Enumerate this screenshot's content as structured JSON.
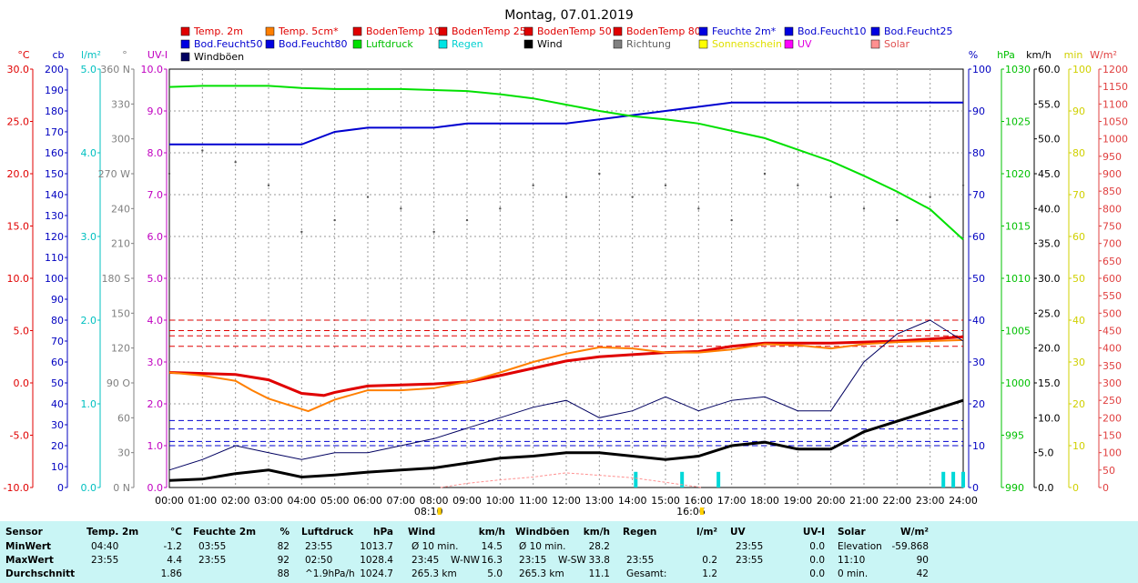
{
  "title": "Montag, 07.01.2019",
  "legend": [
    {
      "name": "Temp. 2m",
      "color": "#e00000"
    },
    {
      "name": "Temp. 5cm*",
      "color": "#ff7f00"
    },
    {
      "name": "BodenTemp 10",
      "color": "#e00000"
    },
    {
      "name": "BodenTemp 25",
      "color": "#e00000"
    },
    {
      "name": "BodenTemp 50",
      "color": "#e00000"
    },
    {
      "name": "BodenTemp 80",
      "color": "#e00000"
    },
    {
      "name": "Feuchte 2m*",
      "color": "#0000e0"
    },
    {
      "name": "Bod.Feucht10",
      "color": "#0000e0"
    },
    {
      "name": "Bod.Feucht25",
      "color": "#0000e0"
    },
    {
      "name": "Bod.Feucht50",
      "color": "#0000e0"
    },
    {
      "name": "Bod.Feucht80",
      "color": "#0000e0"
    },
    {
      "name": "Luftdruck",
      "color": "#00e000"
    },
    {
      "name": "Regen",
      "color": "#00e5e5"
    },
    {
      "name": "Wind",
      "color": "#000000"
    },
    {
      "name": "Richtung",
      "color": "#808080"
    },
    {
      "name": "Sonnenschein",
      "color": "#ffff00"
    },
    {
      "name": "UV",
      "color": "#ff00ff"
    },
    {
      "name": "Solar",
      "color": "#ff9090"
    },
    {
      "name": "Windböen",
      "color": "#000060"
    }
  ],
  "axes_left": [
    {
      "unit": "°C",
      "color": "#e00000",
      "ticks": [
        "30.0",
        "25.0",
        "20.0",
        "15.0",
        "10.0",
        "5.0",
        "0.0",
        "-5.0",
        "-10.0"
      ]
    },
    {
      "unit": "cb",
      "color": "#0000c0",
      "ticks": [
        "200",
        "190",
        "180",
        "170",
        "160",
        "150",
        "140",
        "130",
        "120",
        "110",
        "100",
        "90",
        "80",
        "70",
        "60",
        "50",
        "40",
        "30",
        "20",
        "10",
        "0"
      ]
    },
    {
      "unit": "l/m²",
      "color": "#00c0c0",
      "ticks": [
        "5.0",
        "4.0",
        "3.0",
        "2.0",
        "1.0",
        "0.0"
      ]
    },
    {
      "unit": "°",
      "color": "#808080",
      "ticks": [
        "360 N",
        "330",
        "300",
        "270 W",
        "240",
        "210",
        "180 S",
        "150",
        "120",
        "90 O",
        "60",
        "30",
        "0 N"
      ]
    },
    {
      "unit": "UV-I",
      "color": "#c000c0",
      "ticks": [
        "10.0",
        "9.0",
        "8.0",
        "7.0",
        "6.0",
        "5.0",
        "4.0",
        "3.0",
        "2.0",
        "1.0",
        "0.0"
      ]
    }
  ],
  "axes_right": [
    {
      "unit": "%",
      "color": "#0000c0",
      "ticks": [
        "100",
        "90",
        "80",
        "70",
        "60",
        "50",
        "40",
        "30",
        "20",
        "10",
        "0"
      ]
    },
    {
      "unit": "hPa",
      "color": "#00c000",
      "ticks": [
        "1030",
        "1025",
        "1020",
        "1015",
        "1010",
        "1005",
        "1000",
        "995",
        "990"
      ]
    },
    {
      "unit": "km/h",
      "color": "#000000",
      "ticks": [
        "60.0",
        "55.0",
        "50.0",
        "45.0",
        "40.0",
        "35.0",
        "30.0",
        "25.0",
        "20.0",
        "15.0",
        "10.0",
        "5.0",
        "0.0"
      ]
    },
    {
      "unit": "min",
      "color": "#d0d000",
      "ticks": [
        "100",
        "90",
        "80",
        "70",
        "60",
        "50",
        "40",
        "30",
        "20",
        "10",
        "0"
      ]
    },
    {
      "unit": "W/m²",
      "color": "#e04040",
      "ticks": [
        "1200",
        "1150",
        "1100",
        "1050",
        "1000",
        "950",
        "900",
        "850",
        "800",
        "750",
        "700",
        "650",
        "600",
        "550",
        "500",
        "450",
        "400",
        "350",
        "300",
        "250",
        "200",
        "150",
        "100",
        "50",
        "0"
      ]
    }
  ],
  "x_ticks": [
    "00:00",
    "01:00",
    "02:00",
    "03:00",
    "04:00",
    "05:00",
    "06:00",
    "07:00",
    "08:00",
    "09:00",
    "10:00",
    "11:00",
    "12:00",
    "13:00",
    "14:00",
    "15:00",
    "16:00",
    "17:00",
    "18:00",
    "19:00",
    "20:00",
    "21:00",
    "22:00",
    "23:00",
    "24:00"
  ],
  "sun_marks": [
    "08:10",
    "16:06"
  ],
  "chart_data": {
    "type": "line",
    "title": "Montag, 07.01.2019",
    "x_unit": "hour",
    "ylim_temp": [
      -10,
      30
    ],
    "ylim_humidity": [
      0,
      100
    ],
    "ylim_pressure": [
      990,
      1030
    ],
    "ylim_wind": [
      0,
      60
    ],
    "series": [
      {
        "name": "Temp. 2m",
        "axis": "°C",
        "x": [
          0,
          1,
          2,
          3,
          4,
          4.67,
          5,
          6,
          7,
          8,
          9,
          10,
          11,
          12,
          13,
          14,
          15,
          16,
          17,
          18,
          19,
          20,
          21,
          22,
          23,
          24
        ],
        "values": [
          1.0,
          0.9,
          0.8,
          0.3,
          -1.0,
          -1.2,
          -0.9,
          -0.3,
          -0.2,
          -0.1,
          0.1,
          0.7,
          1.4,
          2.1,
          2.5,
          2.7,
          2.9,
          3.0,
          3.5,
          3.8,
          3.8,
          3.8,
          3.9,
          4.0,
          4.2,
          4.4
        ]
      },
      {
        "name": "Temp. 5cm*",
        "axis": "°C",
        "x": [
          0,
          1,
          2,
          2.5,
          3,
          4,
          4.2,
          5,
          6,
          7,
          8,
          9,
          10,
          11,
          12,
          13,
          14,
          15,
          16,
          17,
          18,
          19,
          20,
          21,
          22,
          23,
          24
        ],
        "values": [
          1.0,
          0.7,
          0.2,
          -0.7,
          -1.5,
          -2.5,
          -2.7,
          -1.6,
          -0.7,
          -0.7,
          -0.5,
          0.1,
          1.0,
          2.0,
          2.8,
          3.4,
          3.3,
          2.9,
          2.9,
          3.2,
          3.7,
          3.6,
          3.3,
          3.7,
          3.9,
          4.0,
          4.1
        ]
      },
      {
        "name": "Feuchte 2m*",
        "axis": "%",
        "x": [
          0,
          2,
          3,
          4,
          5,
          6,
          7,
          8,
          9,
          10,
          11,
          12,
          13,
          14,
          15,
          16,
          17,
          18,
          19,
          20,
          21,
          22,
          23,
          24
        ],
        "values": [
          82,
          82,
          82,
          82,
          85,
          86,
          86,
          86,
          87,
          87,
          87,
          87,
          88,
          89,
          90,
          91,
          92,
          92,
          92,
          92,
          92,
          92,
          92,
          92
        ]
      },
      {
        "name": "Luftdruck",
        "axis": "hPa",
        "x": [
          0,
          1,
          2,
          3,
          4,
          5,
          6,
          7,
          8,
          9,
          10,
          11,
          12,
          13,
          14,
          15,
          16,
          17,
          18,
          19,
          20,
          21,
          22,
          23,
          24
        ],
        "values": [
          1028.3,
          1028.4,
          1028.4,
          1028.4,
          1028.2,
          1028.1,
          1028.1,
          1028.1,
          1028.0,
          1027.9,
          1027.6,
          1027.2,
          1026.6,
          1026.0,
          1025.5,
          1025.2,
          1024.8,
          1024.1,
          1023.4,
          1022.3,
          1021.2,
          1019.8,
          1018.3,
          1016.6,
          1013.7
        ]
      },
      {
        "name": "Wind",
        "axis": "km/h",
        "x": [
          0,
          1,
          2,
          3,
          4,
          5,
          6,
          7,
          8,
          9,
          10,
          11,
          12,
          13,
          14,
          15,
          16,
          17,
          18,
          19,
          20,
          21,
          22,
          23,
          24
        ],
        "values": [
          1.0,
          1.2,
          2.0,
          2.5,
          1.5,
          1.8,
          2.2,
          2.5,
          2.8,
          3.5,
          4.2,
          4.5,
          5.0,
          5.0,
          4.5,
          4.0,
          4.5,
          6.0,
          6.5,
          5.5,
          5.5,
          8.0,
          9.5,
          11.0,
          12.5
        ]
      },
      {
        "name": "Windböen",
        "axis": "km/h",
        "x": [
          0,
          1,
          2,
          3,
          4,
          5,
          6,
          7,
          8,
          9,
          10,
          11,
          12,
          13,
          14,
          15,
          16,
          17,
          18,
          19,
          20,
          21,
          22,
          23,
          24
        ],
        "values": [
          2.5,
          4.0,
          6.0,
          5.0,
          4.0,
          5.0,
          5.0,
          6.0,
          7.0,
          8.5,
          10.0,
          11.5,
          12.5,
          10.0,
          11.0,
          13.0,
          11.0,
          12.5,
          13.0,
          11.0,
          11.0,
          18.0,
          22.0,
          24.0,
          21.0
        ]
      },
      {
        "name": "Richtung",
        "axis": "°",
        "x": [
          0,
          1,
          2,
          3,
          4,
          5,
          6,
          7,
          8,
          9,
          10,
          11,
          12,
          13,
          14,
          15,
          16,
          17,
          18,
          19,
          20,
          21,
          22,
          23,
          24
        ],
        "values": [
          270,
          290,
          280,
          260,
          220,
          230,
          250,
          240,
          220,
          230,
          240,
          260,
          250,
          270,
          250,
          260,
          240,
          230,
          270,
          260,
          250,
          240,
          230,
          250,
          260
        ]
      },
      {
        "name": "Regen",
        "axis": "l/m²",
        "x": [
          14.1,
          15.5,
          16.6,
          23.4,
          23.7,
          24.0
        ],
        "values": [
          0.1,
          0.1,
          0.1,
          0.1,
          0.1,
          0.1
        ]
      },
      {
        "name": "Solar",
        "axis": "W/m²",
        "x": [
          8.2,
          9,
          10,
          11,
          12,
          13,
          14,
          15,
          16.1
        ],
        "values": [
          0,
          12,
          22,
          30,
          42,
          35,
          28,
          15,
          0
        ]
      }
    ],
    "reference_lines": [
      {
        "name": "BodenTemp 10",
        "axis": "°C",
        "value": 3.5
      },
      {
        "name": "BodenTemp 25",
        "axis": "°C",
        "value": 4.5
      },
      {
        "name": "BodenTemp 50",
        "axis": "°C",
        "value": 5.0
      },
      {
        "name": "BodenTemp 80",
        "axis": "°C",
        "value": 6.0
      },
      {
        "name": "Bod.Feucht10",
        "axis": "%",
        "value": 10
      },
      {
        "name": "Bod.Feucht25",
        "axis": "%",
        "value": 11
      },
      {
        "name": "Bod.Feucht50",
        "axis": "%",
        "value": 14
      },
      {
        "name": "Bod.Feucht80",
        "axis": "%",
        "value": 16
      }
    ]
  },
  "table": {
    "headers": [
      "Sensor",
      "Temp. 2m",
      "°C",
      "Feuchte 2m",
      "%",
      "Luftdruck",
      "hPa",
      "Wind",
      "km/h",
      "Windböen",
      "km/h",
      "Regen",
      "l/m²",
      "UV",
      "UV-I",
      "Solar",
      "W/m²"
    ],
    "rows": [
      [
        "MinWert",
        "04:40",
        "-1.2",
        "03:55",
        "82",
        "23:55",
        "1013.7",
        "Ø 10 min.",
        "",
        "14.5",
        "Ø 10 min.",
        "",
        "28.2",
        "",
        "",
        "23:55",
        "0.0",
        "Elevation",
        "-59.868"
      ],
      [
        "MaxWert",
        "23:55",
        "4.4",
        "23:55",
        "92",
        "02:50",
        "1028.4",
        "23:45",
        "W-NW",
        "16.3",
        "23:15",
        "W-SW",
        "33.8",
        "23:55",
        "0.2",
        "23:55",
        "0.0",
        "11:10",
        "90"
      ],
      [
        "Durchschnitt",
        "",
        "1.86",
        "",
        "88",
        "^1.9hPa/h",
        "1024.7",
        "265.3 km",
        "",
        "5.0",
        "265.3 km",
        "",
        "11.1",
        "Gesamt:",
        "1.2",
        "",
        "0.0",
        "0 min.",
        "42"
      ]
    ]
  }
}
